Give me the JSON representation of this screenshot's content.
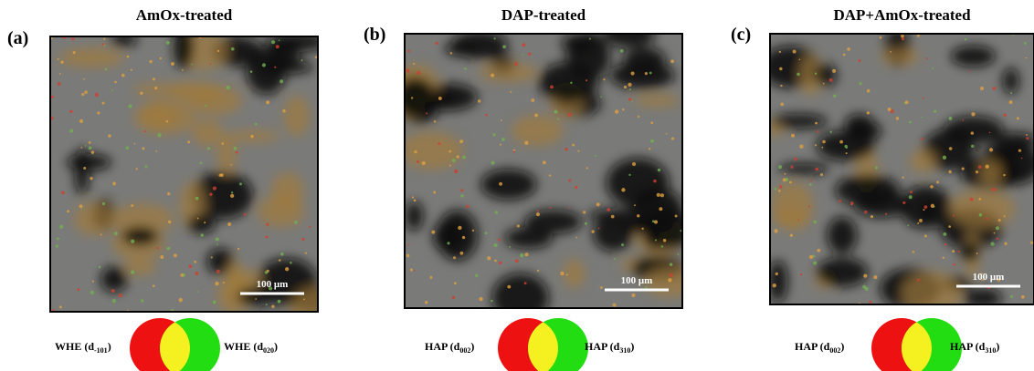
{
  "panels": [
    {
      "label": "(a)",
      "title": "AmOx-treated",
      "scale_bar": "100 μm",
      "legend": {
        "left": {
          "text": "WHE (d",
          "sub": "-101",
          "end": ")"
        },
        "right": {
          "text": "WHE (d",
          "sub": "020",
          "end": ")"
        }
      }
    },
    {
      "label": "(b)",
      "title": "DAP-treated",
      "scale_bar": "100 μm",
      "legend": {
        "left": {
          "text": "HAP (d",
          "sub": "002",
          "end": ")"
        },
        "right": {
          "text": "HAP (d",
          "sub": "310",
          "end": ")"
        }
      }
    },
    {
      "label": "(c)",
      "title": "DAP+AmOx-treated",
      "scale_bar": "100 μm",
      "legend": {
        "left": {
          "text": "HAP (d",
          "sub": "002",
          "end": ")"
        },
        "right": {
          "text": "HAP (d",
          "sub": "310",
          "end": ")"
        }
      }
    }
  ]
}
